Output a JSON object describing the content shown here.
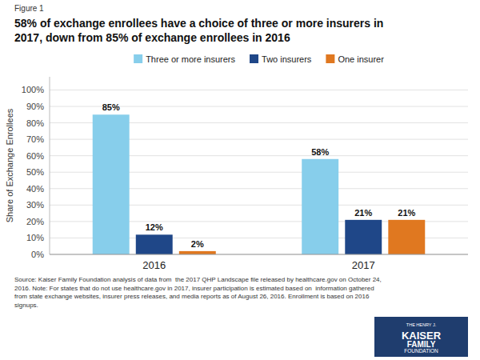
{
  "chart_data": {
    "type": "bar",
    "title": "58% of exchange enrollees have a choice of three or more insurers in\n2017, down from 85% of exchange enrollees in 2016",
    "y_label": "Share of Exchange Enrollees",
    "categories": [
      "2016",
      "2017"
    ],
    "series": [
      {
        "name": "Three or more insurers",
        "color": "#87CEEB",
        "values": [
          85,
          58
        ],
        "value_labels": [
          "85%",
          "58%"
        ]
      },
      {
        "name": "Two insurers",
        "color": "#1F4788",
        "values": [
          12,
          21
        ],
        "value_labels": [
          "12%",
          "21%"
        ]
      },
      {
        "name": "One insurer",
        "color": "#E07820",
        "values": [
          2,
          21
        ],
        "value_labels": [
          "2%",
          "21%"
        ]
      }
    ],
    "ylim": [
      0,
      108
    ],
    "yticks": [
      {
        "value": 0,
        "label": "0%"
      },
      {
        "value": 10,
        "label": "10%"
      },
      {
        "value": 20,
        "label": "20%"
      },
      {
        "value": 30,
        "label": "30%"
      },
      {
        "value": 40,
        "label": "40%"
      },
      {
        "value": 50,
        "label": "50%"
      },
      {
        "value": 60,
        "label": "60%"
      },
      {
        "value": 70,
        "label": "70%"
      },
      {
        "value": 80,
        "label": "80%"
      },
      {
        "value": 90,
        "label": "90%"
      },
      {
        "value": 100,
        "label": "100%"
      }
    ],
    "grid": true,
    "legend": "top",
    "data_labels": true,
    "annotations": [
      "Figure 1",
      "Source: Kaiser Family Foundation analysis of data from  the 2017 QHP Landscape file released by healthcare.gov on October 24,\n2016. Note: For states that do not use healthcare.gov in 2017, insurer participation is estimated based on  information gathered\nfrom state exchange websites, insurer press releases, and media reports as of August 26, 2016. Enrollment is based on 2016\nsignups.",
      "THE HENRY J.\nKAISER\nFAMILY\nFOUNDATION"
    ]
  }
}
